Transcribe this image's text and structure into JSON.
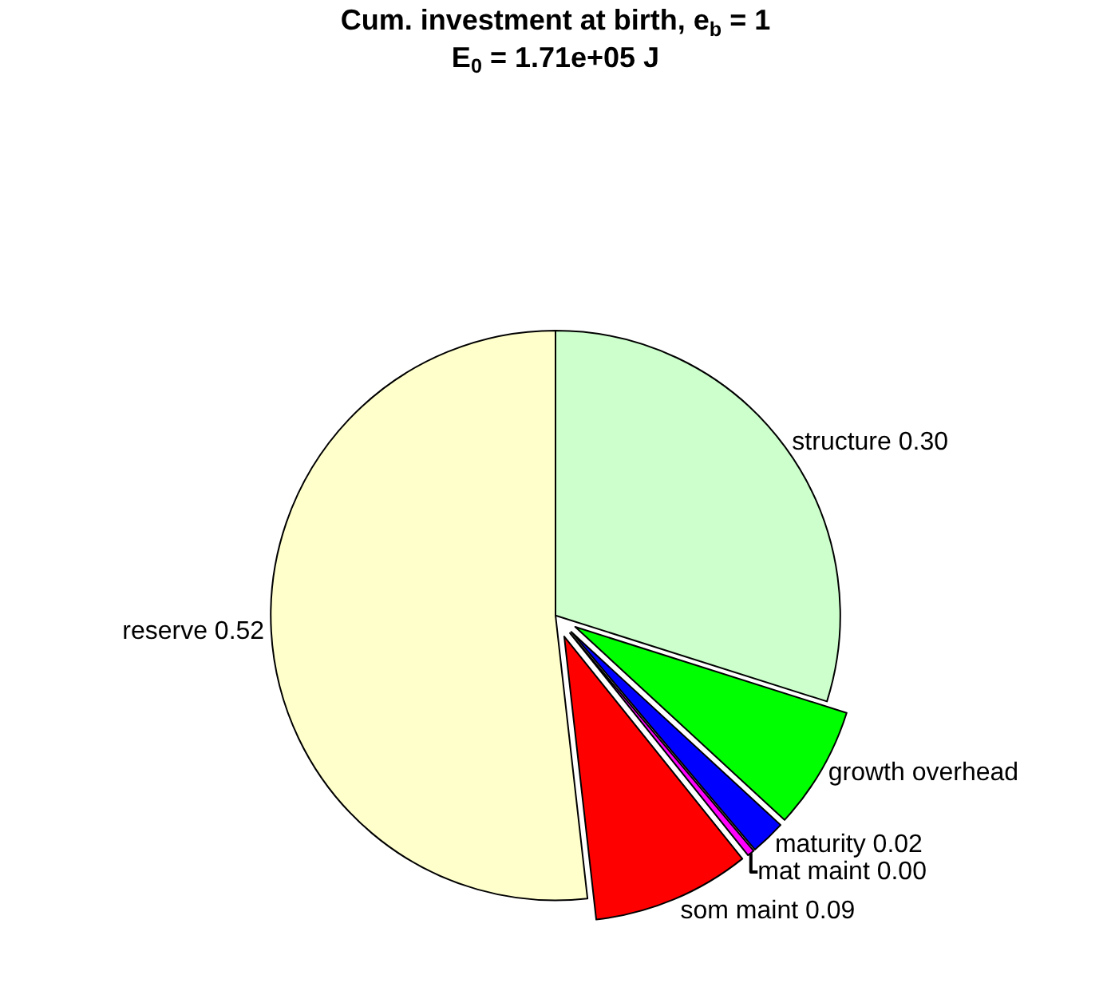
{
  "chart_data": {
    "type": "pie",
    "title": "Cum. investment at birth, e$_{b}$ = 1",
    "subtitle": "E$_{0}$ = 1.71e+05 J",
    "categories": [
      "structure",
      "growth overhead",
      "maturity",
      "mat maint",
      "som maint",
      "reserve"
    ],
    "values": [
      0.3,
      0.07,
      0.02,
      0.004,
      0.09,
      0.52
    ],
    "value_labels": [
      "0.30",
      null,
      "0.02",
      "0.00",
      "0.09",
      "0.52"
    ],
    "colors": [
      "#ccffcc",
      "#00ff00",
      "#0000ff",
      "#ff00ff",
      "#ff0000",
      "#ffffcc"
    ],
    "legend": false
  }
}
